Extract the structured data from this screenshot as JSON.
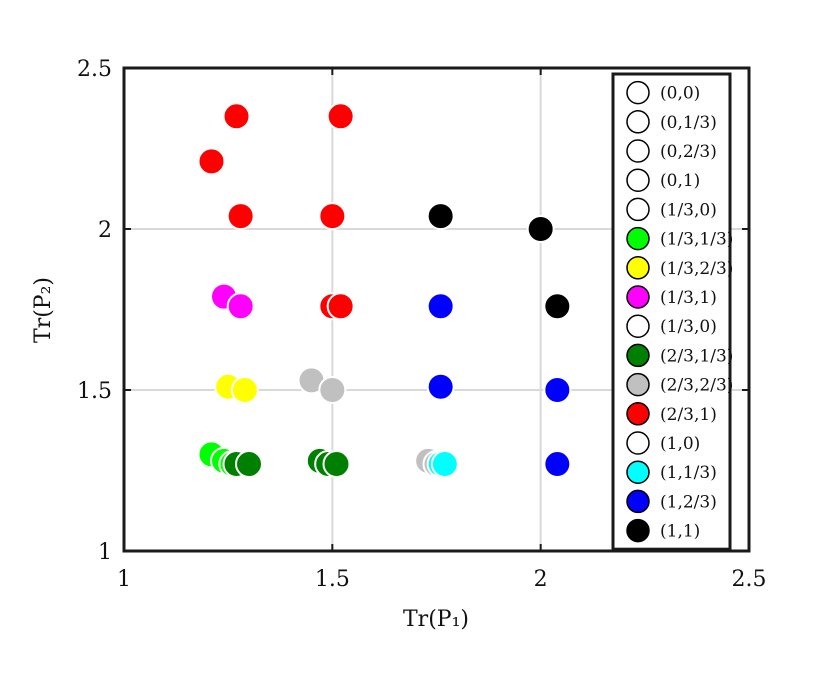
{
  "chart_data": {
    "type": "scatter",
    "title": "",
    "xlabel": "Tr(P₁)",
    "ylabel": "Tr(P₂)",
    "xlim": [
      1,
      2.5
    ],
    "ylim": [
      1,
      2.5
    ],
    "xticks": [
      "1",
      "1.5",
      "2",
      "2.5"
    ],
    "yticks": [
      "1",
      "1.5",
      "2",
      "2.5"
    ],
    "grid": true,
    "legend_position": "right, inside",
    "series": [
      {
        "name": "(0,0)",
        "color": "#ffffff",
        "points": []
      },
      {
        "name": "(0,1/3)",
        "color": "#ffffff",
        "points": []
      },
      {
        "name": "(0,2/3)",
        "color": "#ffffff",
        "points": []
      },
      {
        "name": "(0,1)",
        "color": "#ffffff",
        "points": []
      },
      {
        "name": "(1/3,0)",
        "color": "#ffffff",
        "points": []
      },
      {
        "name": "(1/3,1/3)",
        "color": "#00ff00",
        "points": [
          [
            1.21,
            1.3
          ],
          [
            1.24,
            1.28
          ],
          [
            1.26,
            1.27
          ]
        ]
      },
      {
        "name": "(1/3,2/3)",
        "color": "#ffff00",
        "points": [
          [
            1.25,
            1.51
          ],
          [
            1.29,
            1.5
          ]
        ]
      },
      {
        "name": "(1/3,1)",
        "color": "#ff00ff",
        "points": [
          [
            1.24,
            1.79
          ],
          [
            1.28,
            1.76
          ]
        ]
      },
      {
        "name": "(1/3,0)",
        "color": "#ffffff",
        "points": []
      },
      {
        "name": "(2/3,1/3)",
        "color": "#008000",
        "points": [
          [
            1.27,
            1.27
          ],
          [
            1.3,
            1.27
          ],
          [
            1.47,
            1.28
          ],
          [
            1.49,
            1.27
          ],
          [
            1.51,
            1.27
          ]
        ]
      },
      {
        "name": "(2/3,2/3)",
        "color": "#c0c0c0",
        "points": [
          [
            1.45,
            1.53
          ],
          [
            1.5,
            1.5
          ],
          [
            1.73,
            1.28
          ],
          [
            1.75,
            1.27
          ]
        ]
      },
      {
        "name": "(2/3,1)",
        "color": "#ff0000",
        "points": [
          [
            1.27,
            2.35
          ],
          [
            1.52,
            2.35
          ],
          [
            1.21,
            2.21
          ],
          [
            1.28,
            2.04
          ],
          [
            1.5,
            2.04
          ],
          [
            1.5,
            1.76
          ],
          [
            1.52,
            1.76
          ]
        ]
      },
      {
        "name": "(1,0)",
        "color": "#ffffff",
        "points": []
      },
      {
        "name": "(1,1/3)",
        "color": "#00ffff",
        "points": [
          [
            1.76,
            1.27
          ],
          [
            1.77,
            1.27
          ]
        ]
      },
      {
        "name": "(1,2/3)",
        "color": "#0000ff",
        "points": [
          [
            1.76,
            1.76
          ],
          [
            1.76,
            1.51
          ],
          [
            2.04,
            1.5
          ],
          [
            2.04,
            1.27
          ]
        ]
      },
      {
        "name": "(1,1)",
        "color": "#000000",
        "points": [
          [
            1.76,
            2.04
          ],
          [
            2.0,
            2.0
          ],
          [
            2.04,
            1.76
          ]
        ]
      }
    ]
  }
}
